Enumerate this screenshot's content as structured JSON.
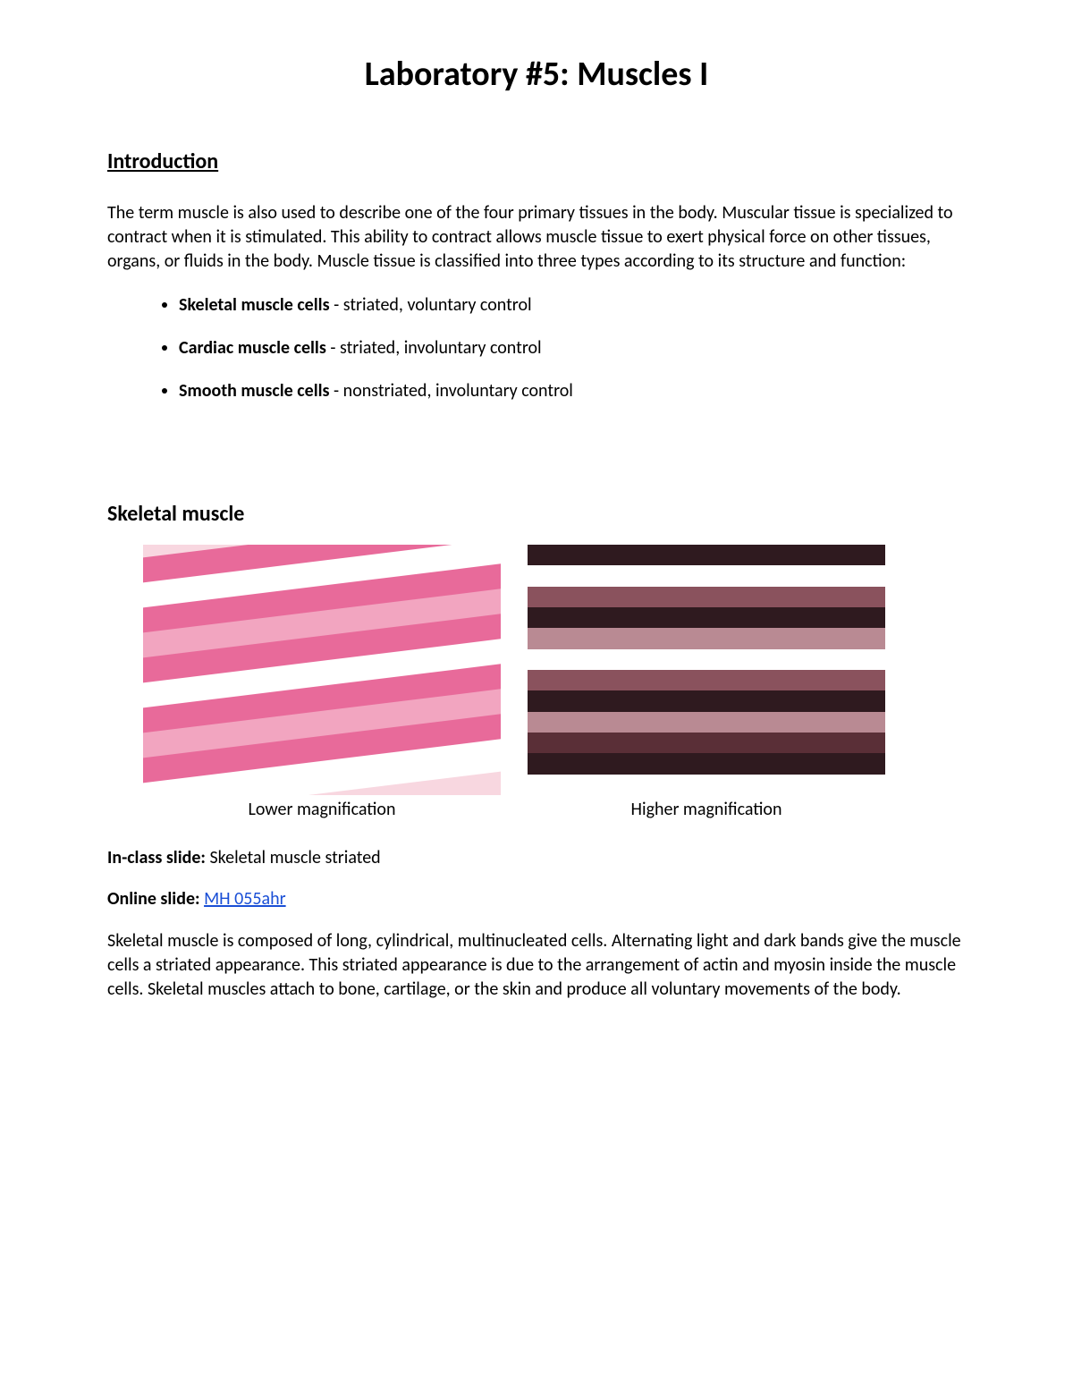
{
  "title": "Laboratory #5: Muscles I",
  "intro_heading": "Introduction",
  "intro_paragraph": "The term muscle is also used to describe one of the four primary tissues in the body. Muscular tissue is specialized to contract when it is stimulated. This ability to contract allows muscle tissue to exert physical force on other tissues, organs, or fluids in the body. Muscle tissue is classified into three types according to its structure and function:",
  "muscle_types": [
    {
      "term": "Skeletal muscle cells",
      "desc": " - striated, voluntary control"
    },
    {
      "term": "Cardiac muscle cells",
      "desc": " - striated, involuntary control"
    },
    {
      "term": "Smooth muscle cells",
      "desc": " - nonstriated, involuntary control"
    }
  ],
  "skeletal_heading": "Skeletal muscle",
  "images": {
    "left": {
      "caption": "Lower magnification",
      "palette": {
        "bg": "#f8d7e0",
        "bands": [
          "#e86a9a",
          "#ffffff",
          "#e86a9a",
          "#f2a5c0",
          "#e86a9a",
          "#ffffff",
          "#e86a9a",
          "#f2a5c0",
          "#e86a9a",
          "#ffffff"
        ]
      }
    },
    "right": {
      "caption": "Higher magnification",
      "palette": {
        "bg": "#6e3b46",
        "bands": [
          "#2f1a1f",
          "#ffffff",
          "#8a525d",
          "#2f1a1f",
          "#b98a93",
          "#ffffff",
          "#8a525d",
          "#2f1a1f",
          "#b98a93",
          "#5a2f37",
          "#2f1a1f",
          "#ffffff"
        ]
      }
    }
  },
  "inclass_label": "In-class slide:",
  "inclass_value": " Skeletal muscle striated",
  "online_label": "Online slide:",
  "online_link_text": "MH 055ahr",
  "skeletal_paragraph": "Skeletal muscle is composed of long, cylindrical, multinucleated cells. Alternating light and dark bands give the muscle cells a striated appearance. This striated appearance is due to the arrangement of actin and myosin inside the muscle cells. Skeletal muscles attach to bone, cartilage, or the skin and produce all voluntary movements of the body.",
  "link_color": "#1a4fd6"
}
